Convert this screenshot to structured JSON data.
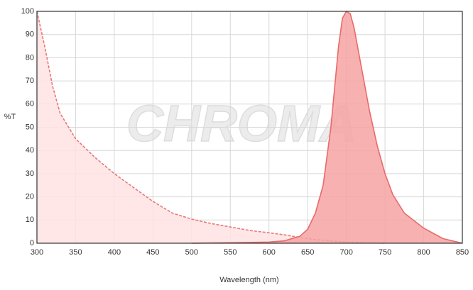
{
  "chart_data": {
    "type": "area",
    "watermark": "CHROMA",
    "xlabel": "Wavelength (nm)",
    "ylabel": "%T",
    "xlim": [
      300,
      850
    ],
    "xticks": [
      300,
      350,
      400,
      450,
      500,
      550,
      600,
      650,
      700,
      750,
      800,
      850
    ],
    "ylim": [
      0,
      100
    ],
    "yticks": [
      0,
      10,
      20,
      30,
      40,
      50,
      60,
      70,
      80,
      90,
      100
    ],
    "grid": true,
    "series": [
      {
        "color": "#e87878",
        "fill": "#ffe3e3",
        "dashed": true,
        "x": [
          300,
          310,
          320,
          330,
          350,
          375,
          400,
          425,
          450,
          475,
          500,
          525,
          550,
          575,
          600,
          620,
          640,
          660,
          680,
          700,
          725,
          750
        ],
        "values": [
          100,
          85,
          68,
          56,
          45,
          37,
          30,
          24,
          18,
          13,
          10.4,
          8.5,
          7,
          5.5,
          4.5,
          3.6,
          2.5,
          1.6,
          1,
          0.5,
          0.2,
          0
        ]
      },
      {
        "color": "#e86a6a",
        "fill": "#f7a3a3",
        "dashed": false,
        "x": [
          500,
          550,
          600,
          620,
          640,
          650,
          660,
          670,
          680,
          690,
          695,
          700,
          705,
          710,
          720,
          730,
          740,
          750,
          760,
          775,
          800,
          825,
          850
        ],
        "values": [
          0,
          0.2,
          0.5,
          1,
          3,
          6,
          13,
          25,
          50,
          85,
          97,
          100,
          99,
          93,
          75,
          57,
          42,
          30,
          21,
          13,
          6.5,
          2,
          0
        ]
      }
    ]
  }
}
